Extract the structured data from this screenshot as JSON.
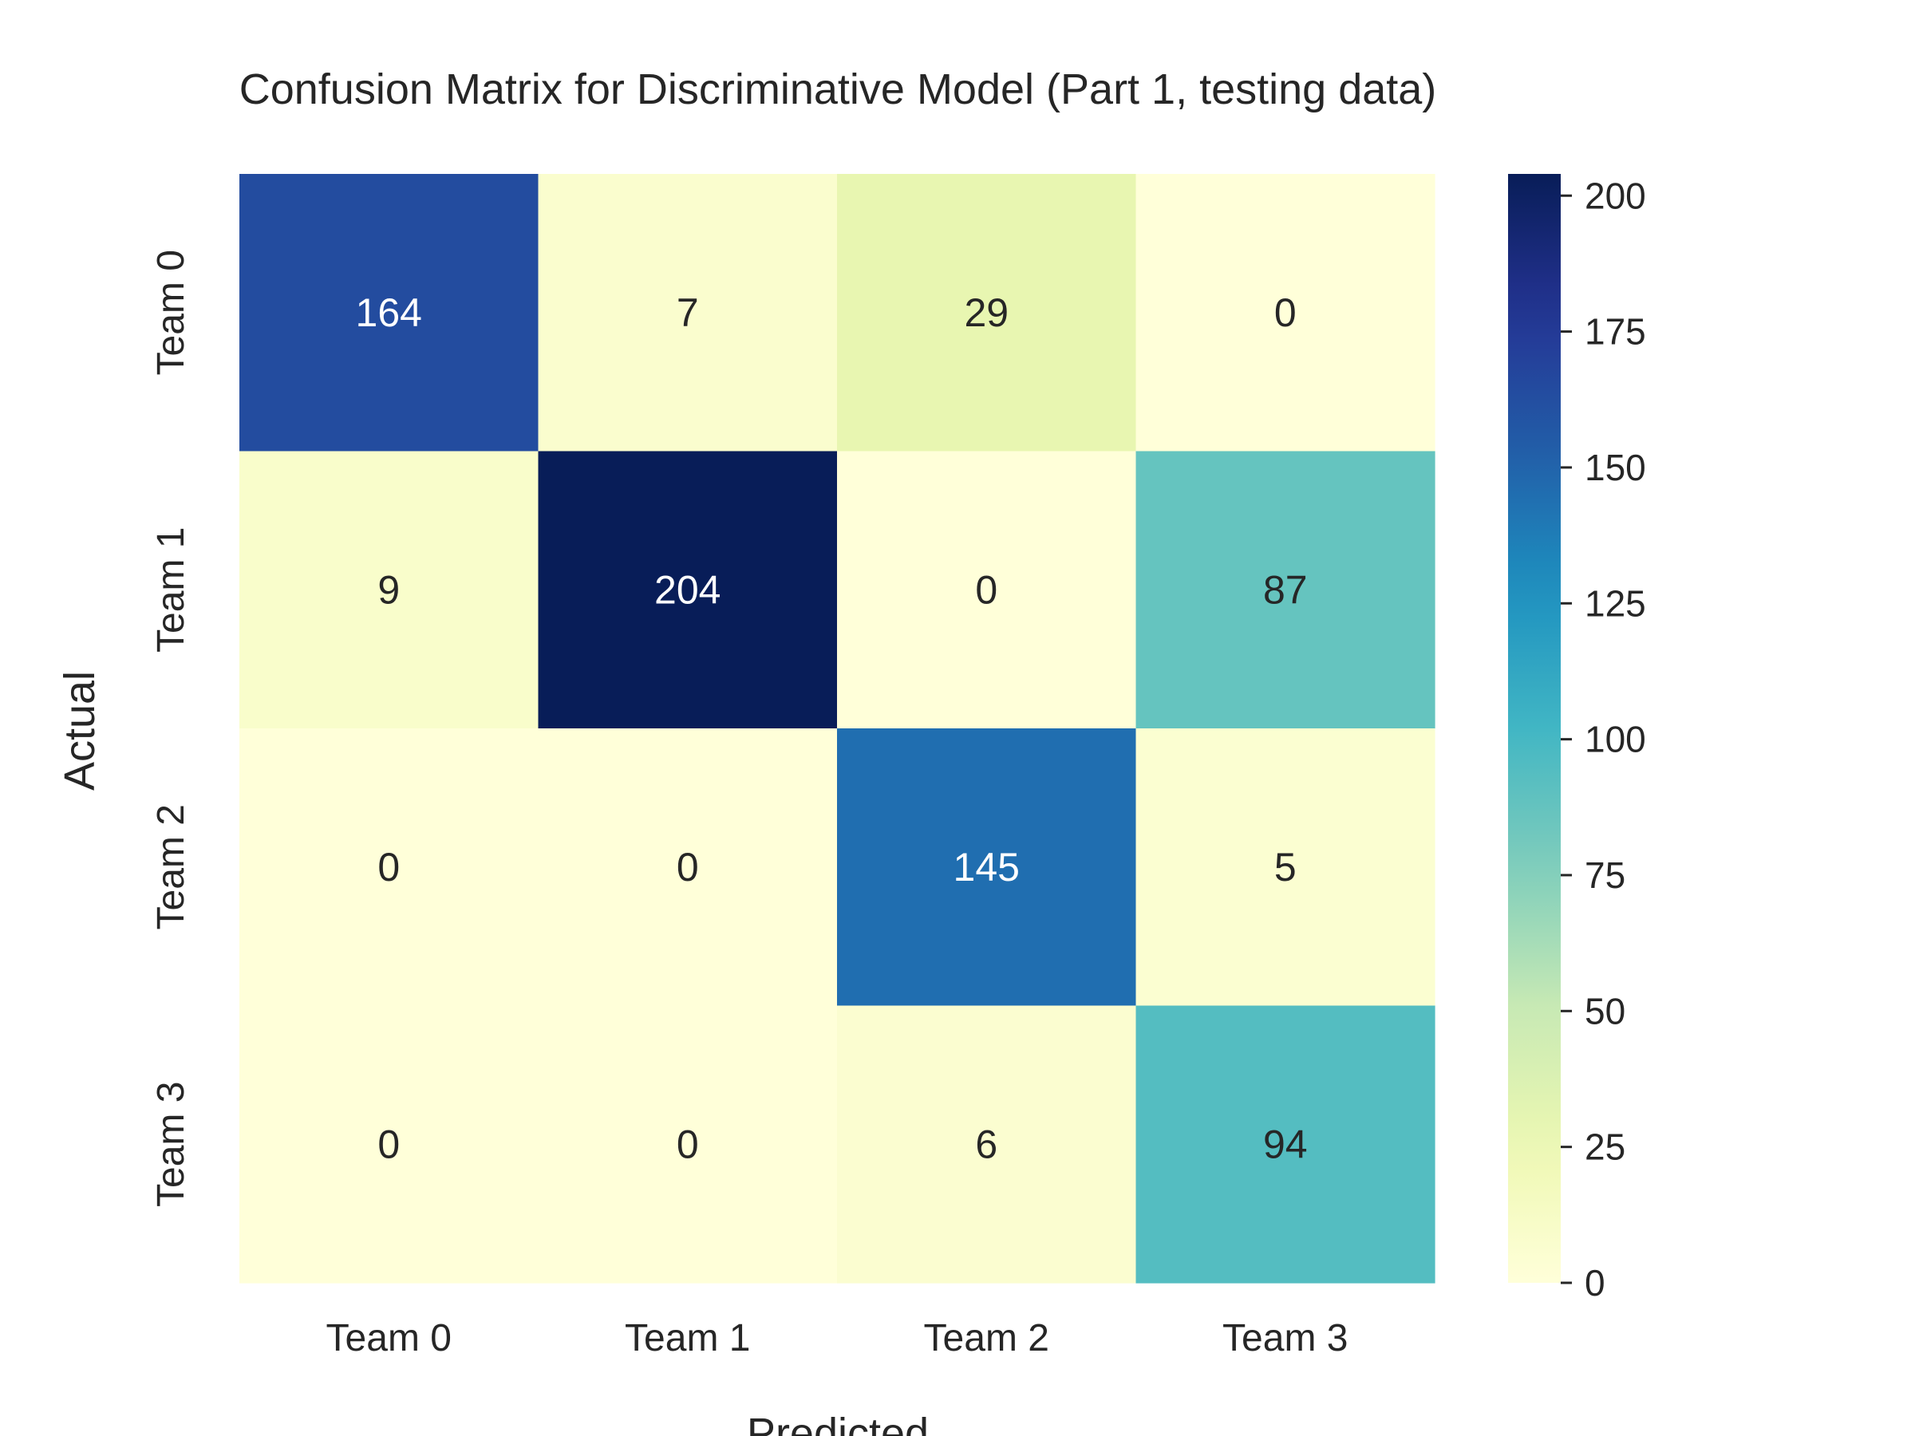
{
  "chart_data": {
    "type": "heatmap",
    "title": "Confusion Matrix for Discriminative Model (Part 1, testing data)",
    "xlabel": "Predicted",
    "ylabel": "Actual",
    "x_categories": [
      "Team 0",
      "Team 1",
      "Team 2",
      "Team 3"
    ],
    "y_categories": [
      "Team 0",
      "Team 1",
      "Team 2",
      "Team 3"
    ],
    "matrix": [
      [
        164,
        7,
        29,
        0
      ],
      [
        9,
        204,
        0,
        87
      ],
      [
        0,
        0,
        145,
        5
      ],
      [
        0,
        0,
        6,
        94
      ]
    ],
    "colormap": "YlGnBu",
    "vmin": 0,
    "vmax": 204,
    "colorbar_ticks": [
      0,
      25,
      50,
      75,
      100,
      125,
      150,
      175,
      200
    ],
    "text_color_dark": "#262626",
    "text_color_light": "#ffffff"
  }
}
